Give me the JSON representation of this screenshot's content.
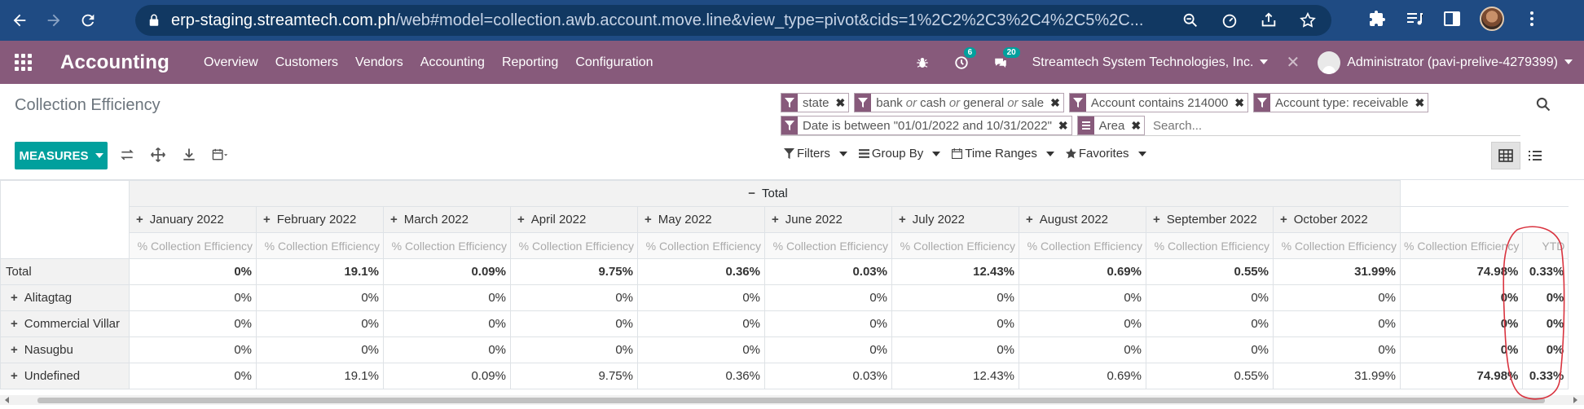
{
  "browser": {
    "url_host": "erp-staging.streamtech.com.ph",
    "url_rest": "/web#model=collection.awb.account.move.line&view_type=pivot&cids=1%2C2%2C3%2C4%2C5%2C..."
  },
  "navbar": {
    "app_title": "Accounting",
    "menu": [
      "Overview",
      "Customers",
      "Vendors",
      "Accounting",
      "Reporting",
      "Configuration"
    ],
    "activity_count": "6",
    "message_count": "20",
    "company": "Streamtech System Technologies, Inc.",
    "user": "Administrator (pavi-prelive-4279399)"
  },
  "control_panel": {
    "title": "Collection Efficiency",
    "facets": [
      {
        "icon": "filter",
        "text": "state"
      },
      {
        "icon": "filter",
        "pre": "bank",
        "sep1": "or",
        "mid": "cash",
        "sep2": "or",
        "mid2": "general",
        "sep3": "or",
        "post": "sale"
      },
      {
        "icon": "filter",
        "text": "Account contains 214000"
      },
      {
        "icon": "filter",
        "text": "Account type: receivable"
      },
      {
        "icon": "filter",
        "text": "Date is between \"01/01/2022 and 10/31/2022\""
      },
      {
        "icon": "group",
        "text": "Area"
      }
    ],
    "search_placeholder": "Search...",
    "measures_label": "MEASURES",
    "filters_label": "Filters",
    "groupby_label": "Group By",
    "timeranges_label": "Time Ranges",
    "favorites_label": "Favorites"
  },
  "pivot": {
    "total_header": "Total",
    "months": [
      "January 2022",
      "February 2022",
      "March 2022",
      "April 2022",
      "May 2022",
      "June 2022",
      "July 2022",
      "August 2022",
      "September 2022",
      "October 2022"
    ],
    "measure": "% Collection Efficiency",
    "ytd_label": "YTD",
    "rows": [
      {
        "label": "Total",
        "expand": false,
        "values": [
          "0%",
          "19.1%",
          "0.09%",
          "9.75%",
          "0.36%",
          "0.03%",
          "12.43%",
          "0.69%",
          "0.55%",
          "31.99%",
          "74.98%",
          "0.33%"
        ],
        "bold_all": true
      },
      {
        "label": "Alitagtag",
        "expand": true,
        "values": [
          "0%",
          "0%",
          "0%",
          "0%",
          "0%",
          "0%",
          "0%",
          "0%",
          "0%",
          "0%",
          "0%",
          "0%"
        ],
        "bold_all": false
      },
      {
        "label": "Commercial Villar",
        "expand": true,
        "values": [
          "0%",
          "0%",
          "0%",
          "0%",
          "0%",
          "0%",
          "0%",
          "0%",
          "0%",
          "0%",
          "0%",
          "0%"
        ],
        "bold_all": false
      },
      {
        "label": "Nasugbu",
        "expand": true,
        "values": [
          "0%",
          "0%",
          "0%",
          "0%",
          "0%",
          "0%",
          "0%",
          "0%",
          "0%",
          "0%",
          "0%",
          "0%"
        ],
        "bold_all": false
      },
      {
        "label": "Undefined",
        "expand": true,
        "values": [
          "0%",
          "19.1%",
          "0.09%",
          "9.75%",
          "0.36%",
          "0.03%",
          "12.43%",
          "0.69%",
          "0.55%",
          "31.99%",
          "74.98%",
          "0.33%"
        ],
        "bold_all": false
      }
    ]
  },
  "colors": {
    "browser_bar": "#1f4b83",
    "navbar": "#875a7b",
    "primary_button": "#00a09d",
    "annotation": "#d9333f"
  }
}
